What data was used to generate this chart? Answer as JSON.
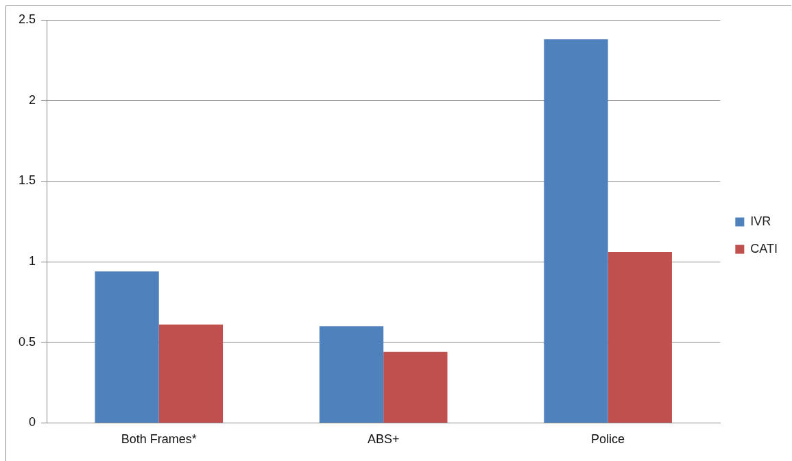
{
  "chart_data": {
    "type": "bar",
    "categories": [
      "Both Frames*",
      "ABS+",
      "Police"
    ],
    "series": [
      {
        "name": "IVR",
        "color": "#4f81bd",
        "values": [
          0.94,
          0.6,
          2.38
        ]
      },
      {
        "name": "CATI",
        "color": "#c0504d",
        "values": [
          0.61,
          0.44,
          1.06
        ]
      }
    ],
    "ylim": [
      0,
      2.5
    ],
    "yticks": [
      0,
      0.5,
      1,
      1.5,
      2,
      2.5
    ],
    "grid": "y",
    "legend": "right"
  }
}
